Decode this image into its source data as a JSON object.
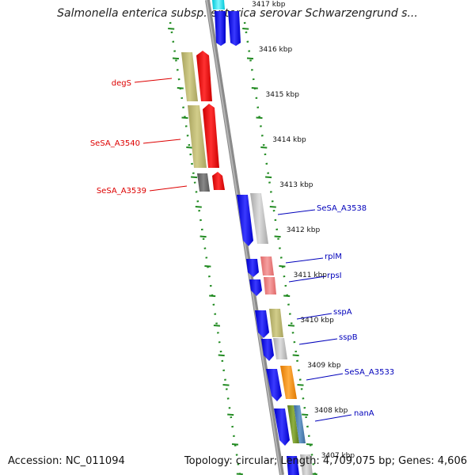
{
  "title": "Salmonella enterica subsp. enterica serovar Schwarzengrund s...",
  "footer": {
    "accession": "Accession: NC_011094",
    "summary": "Topology: circular; Length: 4,709,075 bp; Genes: 4,606"
  },
  "scale_labels": [
    "3417 kbp",
    "3416 kbp",
    "3415 kbp",
    "3414 kbp",
    "3413 kbp",
    "3412 kbp",
    "3411 kbp",
    "3410 kbp",
    "3409 kbp",
    "3408 kbp",
    "3407 kbp"
  ],
  "genes_left": [
    {
      "label": "degS",
      "color": "#dd0000"
    },
    {
      "label": "SeSA_A3540",
      "color": "#dd0000"
    },
    {
      "label": "SeSA_A3539",
      "color": "#dd0000"
    }
  ],
  "genes_right": [
    {
      "label": "SeSA_A3538",
      "color": "#0000bb"
    },
    {
      "label": "rplM",
      "color": "#0000bb"
    },
    {
      "label": "rpsI",
      "color": "#0000bb"
    },
    {
      "label": "sspA",
      "color": "#0000bb"
    },
    {
      "label": "sspB",
      "color": "#0000bb"
    },
    {
      "label": "SeSA_A3533",
      "color": "#0000bb"
    },
    {
      "label": "nanA",
      "color": "#0000bb"
    }
  ],
  "colors": {
    "forward_strand": "#ff0000",
    "reverse_strand": "#0000ff",
    "backbone": "#888888",
    "tick_marks": "#228b22",
    "cog_khaki": "#bdb76b",
    "cog_gray": "#c0c0c0",
    "cog_pink": "#f08080",
    "cog_orange": "#ff8c00",
    "cog_olive": "#6b8e23",
    "cog_steelblue": "#4682b4",
    "cog_cyan": "#00e5ee"
  }
}
